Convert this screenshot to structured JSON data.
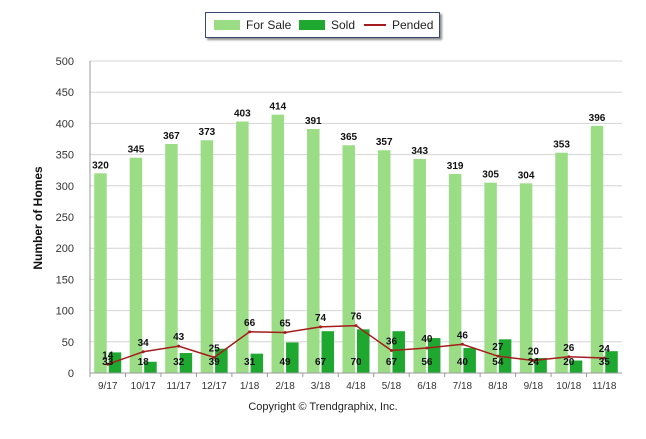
{
  "chart_data": {
    "type": "bar",
    "categories": [
      "9/17",
      "10/17",
      "11/17",
      "12/17",
      "1/18",
      "2/18",
      "3/18",
      "4/18",
      "5/18",
      "6/18",
      "7/18",
      "8/18",
      "9/18",
      "10/18",
      "11/18"
    ],
    "series": [
      {
        "name": "For Sale",
        "type": "bar",
        "color": "#9bdd85",
        "values": [
          320,
          345,
          367,
          373,
          403,
          414,
          391,
          365,
          357,
          343,
          319,
          305,
          304,
          353,
          396
        ]
      },
      {
        "name": "Sold",
        "type": "bar",
        "color": "#1fa82f",
        "values": [
          33,
          18,
          32,
          39,
          31,
          49,
          67,
          70,
          67,
          56,
          40,
          54,
          24,
          20,
          35
        ]
      },
      {
        "name": "Pended",
        "type": "line",
        "color": "#a51c1c",
        "values": [
          14,
          34,
          43,
          25,
          66,
          65,
          74,
          76,
          36,
          40,
          46,
          27,
          20,
          26,
          24
        ]
      }
    ],
    "xlabel": "",
    "ylabel": "Number of Homes",
    "ylim": [
      0,
      500
    ],
    "yticks": [
      0,
      50,
      100,
      150,
      200,
      250,
      300,
      350,
      400,
      450,
      500
    ],
    "grid": true,
    "legend_position": "top-center"
  },
  "legend": {
    "for_sale": "For Sale",
    "sold": "Sold",
    "pended": "Pended"
  },
  "footer": {
    "copyright": "Copyright © Trendgraphix, Inc."
  }
}
